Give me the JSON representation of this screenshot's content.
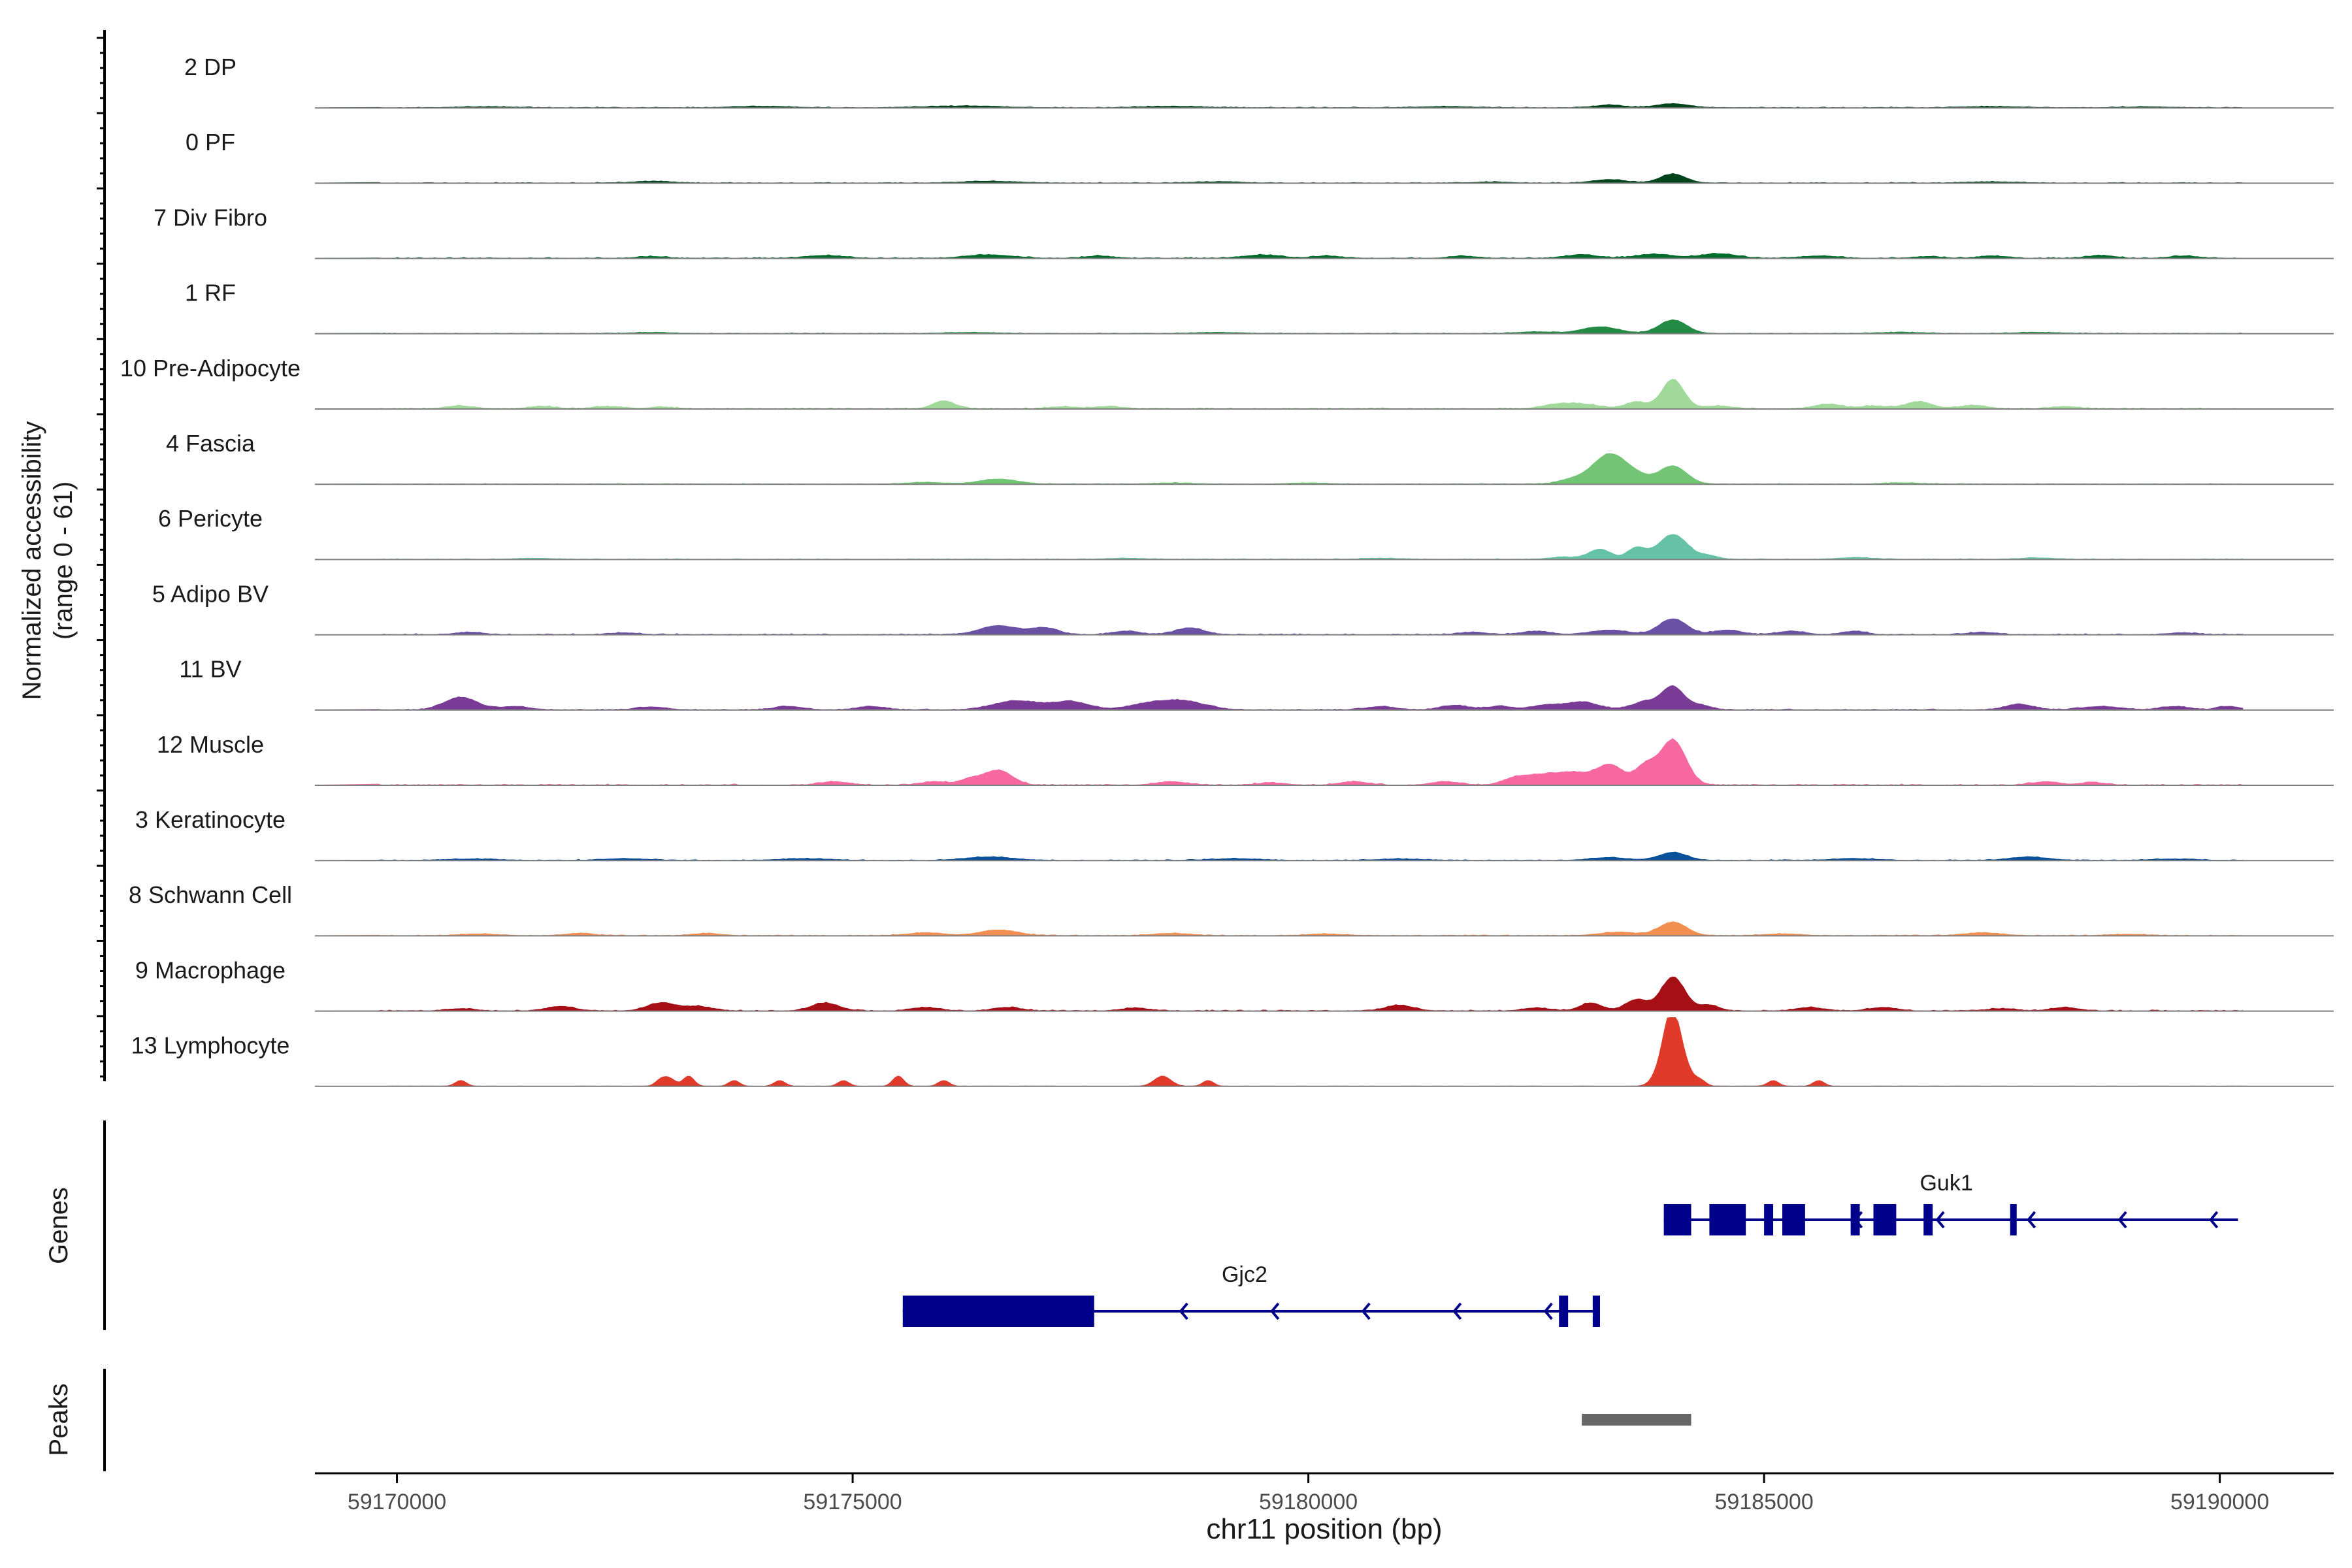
{
  "chart_data": {
    "type": "area",
    "xlabel": "chr11 position (bp)",
    "ylabel_line1": "Normalized accessibility",
    "ylabel_line2": "(range 0 - 61)",
    "xlim": [
      59169100,
      59191250
    ],
    "xticks": [
      59170000,
      59175000,
      59180000,
      59185000,
      59190000
    ],
    "xtick_labels": [
      "59170000",
      "59175000",
      "59180000",
      "59185000",
      "59190000"
    ],
    "y_range": [
      0,
      61
    ],
    "genes_label": "Genes",
    "peaks_label": "Peaks",
    "tracks": [
      {
        "name": "2 DP",
        "color": "#00441b",
        "peaks": [
          [
            59184000,
            3.5,
            180
          ],
          [
            59183300,
            2.5,
            150
          ],
          [
            59176200,
            1.5,
            400
          ],
          [
            59174000,
            1.2,
            300
          ],
          [
            59178500,
            1.2,
            300
          ],
          [
            59181500,
            1,
            300
          ],
          [
            59187500,
            1,
            300
          ],
          [
            59171000,
            0.8,
            300
          ],
          [
            59189200,
            0.8,
            250
          ]
        ],
        "noise": 0.8
      },
      {
        "name": "0 PF",
        "color": "#00441b",
        "peaks": [
          [
            59184000,
            8,
            140
          ],
          [
            59183300,
            3,
            180
          ],
          [
            59172800,
            1.5,
            200
          ],
          [
            59176500,
            1.5,
            300
          ],
          [
            59179000,
            1,
            250
          ],
          [
            59187500,
            1,
            250
          ],
          [
            59182000,
            0.8,
            200
          ]
        ],
        "noise": 0.7
      },
      {
        "name": "7 Div Fibro",
        "color": "#006d2c",
        "peaks": [
          [
            59184500,
            4,
            200
          ],
          [
            59183800,
            3.5,
            200
          ],
          [
            59183000,
            3,
            180
          ],
          [
            59176500,
            3,
            250
          ],
          [
            59174700,
            2.5,
            200
          ],
          [
            59179500,
            3,
            200
          ],
          [
            59180200,
            2,
            150
          ],
          [
            59181700,
            1.8,
            150
          ],
          [
            59185600,
            2,
            200
          ],
          [
            59187500,
            2,
            150
          ],
          [
            59188700,
            2.5,
            150
          ],
          [
            59189600,
            2,
            150
          ],
          [
            59177700,
            2,
            150
          ],
          [
            59172800,
            1.5,
            150
          ],
          [
            59186800,
            1.5,
            150
          ]
        ],
        "noise": 1.0
      },
      {
        "name": "1 RF",
        "color": "#238b45",
        "peaks": [
          [
            59184000,
            12,
            150
          ],
          [
            59183200,
            6,
            200
          ],
          [
            59182500,
            1.5,
            200
          ],
          [
            59172800,
            1,
            200
          ],
          [
            59176300,
            1,
            250
          ],
          [
            59179000,
            1,
            250
          ],
          [
            59186500,
            1,
            250
          ],
          [
            59188000,
            1,
            250
          ]
        ],
        "noise": 0.6
      },
      {
        "name": "10 Pre-Adipocyte",
        "color": "#a1d99b",
        "peaks": [
          [
            59184000,
            26,
            120
          ],
          [
            59183600,
            6,
            120
          ],
          [
            59183000,
            4,
            200
          ],
          [
            59182700,
            3,
            150
          ],
          [
            59184500,
            2.5,
            150
          ],
          [
            59176000,
            7,
            120
          ],
          [
            59177800,
            2,
            150
          ],
          [
            59170700,
            2.5,
            150
          ],
          [
            59171600,
            2,
            150
          ],
          [
            59172300,
            2,
            150
          ],
          [
            59186700,
            6,
            150
          ],
          [
            59187300,
            3,
            150
          ],
          [
            59185700,
            4,
            150
          ],
          [
            59186200,
            2.5,
            150
          ],
          [
            59188300,
            2,
            150
          ],
          [
            59177300,
            1.8,
            150
          ],
          [
            59172900,
            1.5,
            150
          ]
        ],
        "noise": 1.0
      },
      {
        "name": "4 Fascia",
        "color": "#74c476",
        "peaks": [
          [
            59183300,
            26,
            180
          ],
          [
            59184000,
            16,
            150
          ],
          [
            59183600,
            6,
            150
          ],
          [
            59182900,
            4,
            150
          ],
          [
            59176600,
            4.5,
            200
          ],
          [
            59175800,
            1.5,
            200
          ],
          [
            59178500,
            1,
            200
          ],
          [
            59186500,
            1,
            200
          ],
          [
            59180000,
            1,
            200
          ]
        ],
        "noise": 0.6
      },
      {
        "name": "6 Pericyte",
        "color": "#66c2a4",
        "peaks": [
          [
            59184000,
            22,
            160
          ],
          [
            59183600,
            10,
            100
          ],
          [
            59183200,
            9,
            120
          ],
          [
            59184400,
            3,
            100
          ],
          [
            59182800,
            2,
            150
          ],
          [
            59171500,
            1,
            200
          ],
          [
            59178000,
            1,
            200
          ],
          [
            59180800,
            1,
            200
          ],
          [
            59186000,
            1.5,
            200
          ],
          [
            59188000,
            1.2,
            200
          ]
        ],
        "noise": 0.6
      },
      {
        "name": "5 Adipo BV",
        "color": "#6a51a3",
        "peaks": [
          [
            59184000,
            14,
            150
          ],
          [
            59176600,
            8,
            200
          ],
          [
            59177100,
            6,
            150
          ],
          [
            59178700,
            6,
            150
          ],
          [
            59178000,
            3,
            150
          ],
          [
            59183300,
            4,
            200
          ],
          [
            59182500,
            3,
            150
          ],
          [
            59184600,
            4,
            150
          ],
          [
            59185300,
            3,
            150
          ],
          [
            59186000,
            3,
            120
          ],
          [
            59181800,
            2,
            150
          ],
          [
            59187400,
            2,
            150
          ],
          [
            59172500,
            1.5,
            150
          ],
          [
            59170800,
            2,
            150
          ],
          [
            59189600,
            1.5,
            150
          ]
        ],
        "noise": 0.9
      },
      {
        "name": "11 BV",
        "color": "#7a3b96",
        "peaks": [
          [
            59184000,
            20,
            120
          ],
          [
            59170700,
            11,
            180
          ],
          [
            59176800,
            8,
            250
          ],
          [
            59177400,
            7,
            200
          ],
          [
            59178600,
            8,
            250
          ],
          [
            59178200,
            4,
            200
          ],
          [
            59183000,
            7,
            180
          ],
          [
            59183700,
            7,
            150
          ],
          [
            59184300,
            4,
            120
          ],
          [
            59182600,
            4,
            150
          ],
          [
            59181600,
            4,
            150
          ],
          [
            59174300,
            3,
            150
          ],
          [
            59175200,
            3,
            150
          ],
          [
            59171300,
            3,
            150
          ],
          [
            59187800,
            5,
            150
          ],
          [
            59188700,
            3,
            200
          ],
          [
            59189500,
            3,
            150
          ],
          [
            59190100,
            3,
            120
          ],
          [
            59172800,
            2.5,
            150
          ],
          [
            59180800,
            3,
            150
          ],
          [
            59182100,
            3,
            150
          ]
        ],
        "noise": 1.0
      },
      {
        "name": "12 Muscle",
        "color": "#f768a1",
        "peaks": [
          [
            59184000,
            40,
            140
          ],
          [
            59183700,
            16,
            110
          ],
          [
            59183300,
            18,
            160
          ],
          [
            59182900,
            10,
            150
          ],
          [
            59182600,
            8,
            150
          ],
          [
            59182300,
            7,
            150
          ],
          [
            59176600,
            13,
            150
          ],
          [
            59176300,
            5,
            120
          ],
          [
            59175900,
            3,
            150
          ],
          [
            59174800,
            3,
            150
          ],
          [
            59178500,
            3,
            150
          ],
          [
            59180500,
            3,
            150
          ],
          [
            59181500,
            3,
            150
          ],
          [
            59188100,
            3,
            150
          ],
          [
            59188600,
            2.5,
            120
          ],
          [
            59179600,
            2,
            150
          ]
        ],
        "noise": 1.1
      },
      {
        "name": "3 Keratinocyte",
        "color": "#08519c",
        "peaks": [
          [
            59184000,
            7,
            150
          ],
          [
            59176500,
            3,
            250
          ],
          [
            59183300,
            2.5,
            200
          ],
          [
            59187900,
            3,
            200
          ],
          [
            59172500,
            1.5,
            250
          ],
          [
            59174500,
            1.5,
            250
          ],
          [
            59179200,
            1.5,
            250
          ],
          [
            59181000,
            1.2,
            250
          ],
          [
            59186000,
            1.5,
            250
          ],
          [
            59189500,
            1.2,
            250
          ],
          [
            59170800,
            1.2,
            250
          ]
        ],
        "noise": 0.8
      },
      {
        "name": "8 Schwann Cell",
        "color": "#f28e50",
        "peaks": [
          [
            59184000,
            12,
            150
          ],
          [
            59176600,
            5,
            200
          ],
          [
            59175800,
            2.5,
            200
          ],
          [
            59172000,
            2,
            150
          ],
          [
            59173400,
            2,
            150
          ],
          [
            59178500,
            2,
            200
          ],
          [
            59180200,
            1.5,
            200
          ],
          [
            59183400,
            3,
            200
          ],
          [
            59187400,
            2.5,
            200
          ],
          [
            59185200,
            1.5,
            200
          ],
          [
            59170900,
            1.5,
            200
          ],
          [
            59189000,
            1.2,
            200
          ]
        ],
        "noise": 0.8
      },
      {
        "name": "9 Macrophage",
        "color": "#a50f15",
        "peaks": [
          [
            59184000,
            30,
            130
          ],
          [
            59183600,
            10,
            120
          ],
          [
            59184400,
            5,
            110
          ],
          [
            59183100,
            7,
            120
          ],
          [
            59172900,
            7,
            150
          ],
          [
            59174700,
            7,
            150
          ],
          [
            59171800,
            4,
            150
          ],
          [
            59173300,
            4,
            150
          ],
          [
            59175800,
            3,
            150
          ],
          [
            59176700,
            3,
            150
          ],
          [
            59181000,
            5,
            150
          ],
          [
            59186300,
            3,
            150
          ],
          [
            59185500,
            3,
            150
          ],
          [
            59188300,
            3,
            150
          ],
          [
            59182500,
            2.5,
            150
          ],
          [
            59178100,
            2.5,
            150
          ],
          [
            59170700,
            2,
            150
          ],
          [
            59187600,
            2,
            150
          ]
        ],
        "noise": 1.0
      },
      {
        "name": "13 Lymphocyte",
        "color": "#e03a2b",
        "peaks": [
          [
            59184000,
            58,
            90
          ],
          [
            59183900,
            15,
            100
          ],
          [
            59184150,
            10,
            80
          ],
          [
            59175500,
            9,
            60
          ],
          [
            59173200,
            9,
            60
          ],
          [
            59178400,
            9,
            90
          ],
          [
            59173000,
            6,
            60
          ],
          [
            59172900,
            6,
            60
          ],
          [
            59174200,
            5,
            60
          ],
          [
            59173700,
            5,
            60
          ],
          [
            59170700,
            5,
            60
          ],
          [
            59174900,
            5,
            60
          ],
          [
            59176000,
            5,
            60
          ],
          [
            59178900,
            5,
            60
          ],
          [
            59184300,
            5,
            60
          ],
          [
            59185100,
            5,
            60
          ],
          [
            59185600,
            5,
            60
          ]
        ],
        "noise": 0.2
      }
    ],
    "genes": [
      {
        "name": "Gjc2",
        "row": 2,
        "strand": "-",
        "start": 59175550,
        "end": 59183200,
        "exons": [
          [
            59175550,
            59177650
          ],
          [
            59182750,
            59182850
          ],
          [
            59183120,
            59183200
          ]
        ],
        "arrows": [
          59178600,
          59179600,
          59180600,
          59181600,
          59182600
        ],
        "label_x": 59179300
      },
      {
        "name": "Guk1",
        "row": 1,
        "strand": "-",
        "start": 59183900,
        "end": 59190200,
        "exons": [
          [
            59183900,
            59184200
          ],
          [
            59184400,
            59184800
          ],
          [
            59185000,
            59185100
          ],
          [
            59185200,
            59185450
          ],
          [
            59185950,
            59186050
          ],
          [
            59186200,
            59186450
          ],
          [
            59186750,
            59186850
          ],
          [
            59187700,
            59187720
          ]
        ],
        "arrows": [
          59186000,
          59186900,
          59187900,
          59188900,
          59189900
        ],
        "label_x": 59187000
      }
    ],
    "peak_regions": [
      [
        59183000,
        59184200
      ]
    ]
  }
}
